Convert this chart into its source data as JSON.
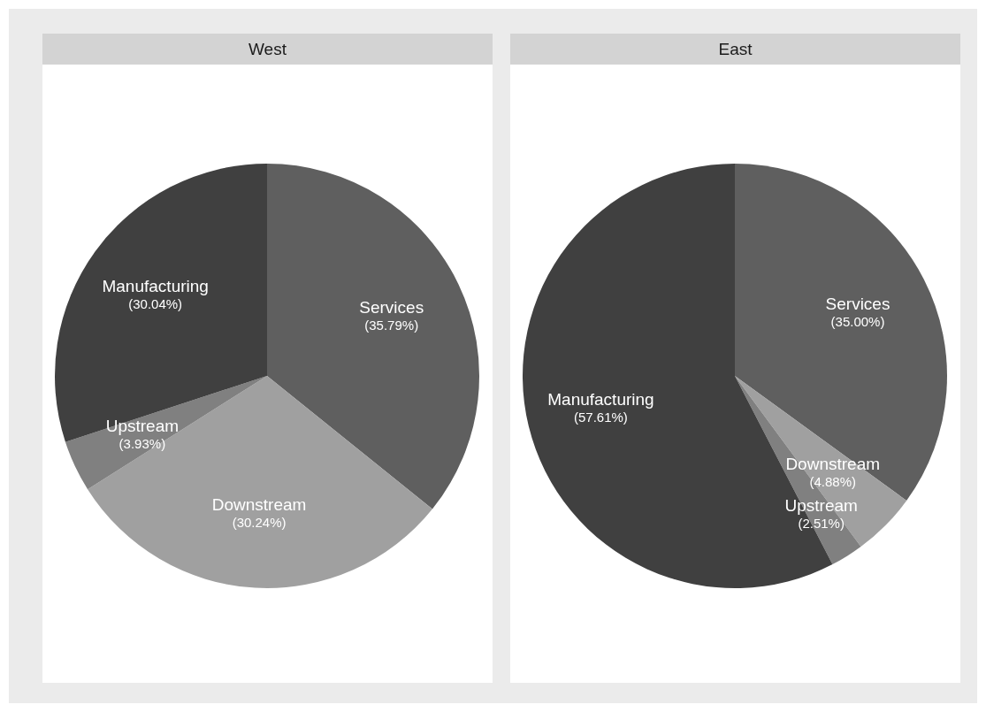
{
  "chart_data": [
    {
      "type": "pie",
      "title": "West",
      "categories": [
        "Services",
        "Downstream",
        "Upstream",
        "Manufacturing"
      ],
      "values": [
        35.79,
        30.24,
        3.93,
        30.04
      ],
      "colors": [
        "#5f5f5f",
        "#a0a0a0",
        "#808080",
        "#404040"
      ],
      "value_labels": [
        "(35.79%)",
        "(30.24%)",
        "(3.93%)",
        "(30.04%)"
      ]
    },
    {
      "type": "pie",
      "title": "East",
      "categories": [
        "Services",
        "Downstream",
        "Upstream",
        "Manufacturing"
      ],
      "values": [
        35.0,
        4.88,
        2.51,
        57.61
      ],
      "colors": [
        "#5f5f5f",
        "#a0a0a0",
        "#808080",
        "#404040"
      ],
      "value_labels": [
        "(35.00%)",
        "(4.88%)",
        "(2.51%)",
        "(57.61%)"
      ]
    }
  ]
}
